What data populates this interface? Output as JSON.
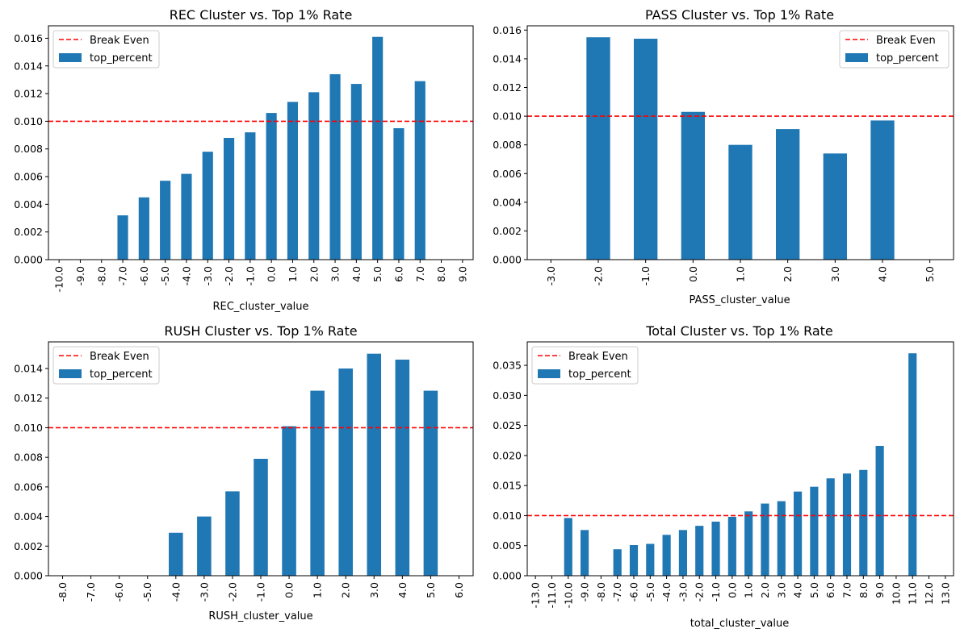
{
  "chart_data": [
    {
      "type": "bar",
      "title": "REC Cluster vs.  Top 1% Rate",
      "xlabel": "REC_cluster_value",
      "ylabel": "",
      "categories": [
        "-10.0",
        "-9.0",
        "-8.0",
        "-7.0",
        "-6.0",
        "-5.0",
        "-4.0",
        "-3.0",
        "-2.0",
        "-1.0",
        "0.0",
        "1.0",
        "2.0",
        "3.0",
        "4.0",
        "5.0",
        "6.0",
        "7.0",
        "8.0",
        "9.0"
      ],
      "series": [
        {
          "name": "top_percent",
          "values": [
            0,
            0,
            0,
            0.0032,
            0.0045,
            0.0057,
            0.0062,
            0.0078,
            0.0088,
            0.0092,
            0.0106,
            0.0114,
            0.0121,
            0.0134,
            0.0127,
            0.0161,
            0.0095,
            0.0129,
            0,
            0
          ]
        }
      ],
      "reference_line": {
        "name": "Break Even",
        "value": 0.01
      },
      "ylim": [
        0,
        0.0169
      ],
      "yticks": [
        "0.000",
        "0.002",
        "0.004",
        "0.006",
        "0.008",
        "0.010",
        "0.012",
        "0.014",
        "0.016"
      ],
      "legend": "upper-left",
      "grid": false
    },
    {
      "type": "bar",
      "title": "PASS Cluster vs.  Top 1% Rate",
      "xlabel": "PASS_cluster_value",
      "ylabel": "",
      "categories": [
        "-3.0",
        "-2.0",
        "-1.0",
        "0.0",
        "1.0",
        "2.0",
        "3.0",
        "4.0",
        "5.0"
      ],
      "series": [
        {
          "name": "top_percent",
          "values": [
            0,
            0.0155,
            0.0154,
            0.0103,
            0.008,
            0.0091,
            0.0074,
            0.0097,
            0
          ]
        }
      ],
      "reference_line": {
        "name": "Break Even",
        "value": 0.01
      },
      "ylim": [
        0,
        0.0163
      ],
      "yticks": [
        "0.000",
        "0.002",
        "0.004",
        "0.006",
        "0.008",
        "0.010",
        "0.012",
        "0.014",
        "0.016"
      ],
      "legend": "upper-right",
      "grid": false
    },
    {
      "type": "bar",
      "title": "RUSH Cluster vs.  Top 1% Rate",
      "xlabel": "RUSH_cluster_value",
      "ylabel": "",
      "categories": [
        "-8.0",
        "-7.0",
        "-6.0",
        "-5.0",
        "-4.0",
        "-3.0",
        "-2.0",
        "-1.0",
        "0.0",
        "1.0",
        "2.0",
        "3.0",
        "4.0",
        "5.0",
        "6.0"
      ],
      "series": [
        {
          "name": "top_percent",
          "values": [
            0,
            0,
            0,
            0,
            0.0029,
            0.004,
            0.0057,
            0.0079,
            0.0101,
            0.0125,
            0.014,
            0.015,
            0.0146,
            0.0125,
            0
          ]
        }
      ],
      "reference_line": {
        "name": "Break Even",
        "value": 0.01
      },
      "ylim": [
        0,
        0.0158
      ],
      "yticks": [
        "0.000",
        "0.002",
        "0.004",
        "0.006",
        "0.008",
        "0.010",
        "0.012",
        "0.014"
      ],
      "legend": "upper-left",
      "grid": false
    },
    {
      "type": "bar",
      "title": "Total Cluster vs. Top 1% Rate",
      "xlabel": "total_cluster_value",
      "ylabel": "",
      "categories": [
        "-13.0",
        "-11.0",
        "-10.0",
        "-9.0",
        "-8.0",
        "-7.0",
        "-6.0",
        "-5.0",
        "-4.0",
        "-3.0",
        "-2.0",
        "-1.0",
        "0.0",
        "1.0",
        "2.0",
        "3.0",
        "4.0",
        "5.0",
        "6.0",
        "7.0",
        "8.0",
        "9.0",
        "10.0",
        "11.0",
        "12.0",
        "13.0"
      ],
      "series": [
        {
          "name": "top_percent",
          "values": [
            0,
            0,
            0.0096,
            0.0076,
            0,
            0.0044,
            0.0051,
            0.0053,
            0.0068,
            0.0076,
            0.0083,
            0.009,
            0.0098,
            0.0107,
            0.012,
            0.0124,
            0.014,
            0.0148,
            0.0162,
            0.017,
            0.0176,
            0.0216,
            0,
            0.037,
            0,
            0
          ]
        }
      ],
      "reference_line": {
        "name": "Break Even",
        "value": 0.01
      },
      "ylim": [
        0,
        0.0389
      ],
      "yticks": [
        "0.000",
        "0.005",
        "0.010",
        "0.015",
        "0.020",
        "0.025",
        "0.030",
        "0.035"
      ],
      "legend": "upper-left",
      "grid": false
    }
  ],
  "colors": {
    "bar": "#1f77b4",
    "reference_line": "#ff0000",
    "axis": "#000000",
    "legend_border": "#cccccc"
  }
}
